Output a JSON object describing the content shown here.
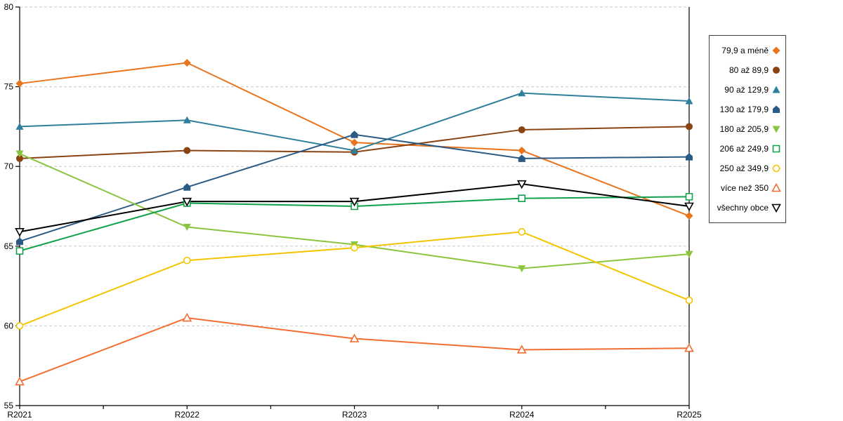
{
  "chart_data": {
    "type": "line",
    "title": "",
    "xlabel": "",
    "ylabel": "",
    "categories": [
      "R2021",
      "R2022",
      "R2023",
      "R2024",
      "R2025"
    ],
    "ylim": [
      55,
      80
    ],
    "ytick_step": 5,
    "ytick_labels": [
      "55",
      "60",
      "65",
      "70",
      "75",
      "80"
    ],
    "grid": "horizontal-dashed",
    "grid_color": "#c9c9c9",
    "axis_color": "#000000",
    "legend_position": "right",
    "series": [
      {
        "name": "79,9 a méně",
        "marker": "diamond",
        "fill": "filled",
        "color": "#e8741c",
        "values": [
          75.2,
          76.5,
          71.5,
          71.0,
          66.9
        ]
      },
      {
        "name": "80 až 89,9",
        "marker": "circle",
        "fill": "filled",
        "color": "#8a4412",
        "values": [
          70.5,
          71.0,
          70.9,
          72.3,
          72.5
        ]
      },
      {
        "name": "90 až 129,9",
        "marker": "triangle-up",
        "fill": "filled",
        "color": "#2e7e9c",
        "values": [
          72.5,
          72.9,
          71.0,
          74.6,
          74.1
        ]
      },
      {
        "name": "130 až 179,9",
        "marker": "pentagon",
        "fill": "filled",
        "color": "#2b5a84",
        "values": [
          65.3,
          68.7,
          72.0,
          70.5,
          70.6
        ]
      },
      {
        "name": "180 až 205,9",
        "marker": "triangle-down",
        "fill": "filled",
        "color": "#8bc53f",
        "values": [
          70.8,
          66.2,
          65.1,
          63.6,
          64.5
        ]
      },
      {
        "name": "206 až 249,9",
        "marker": "square",
        "fill": "open",
        "color": "#12a14b",
        "values": [
          64.7,
          67.7,
          67.5,
          68.0,
          68.1
        ]
      },
      {
        "name": "250 až 349,9",
        "marker": "circle",
        "fill": "open",
        "color": "#f2c500",
        "values": [
          60.0,
          64.1,
          64.9,
          65.9,
          61.6
        ]
      },
      {
        "name": "více než 350",
        "marker": "triangle-up",
        "fill": "open",
        "color": "#f26e31",
        "values": [
          56.5,
          60.5,
          59.2,
          58.5,
          58.6
        ]
      },
      {
        "name": "všechny obce",
        "marker": "triangle-down",
        "fill": "open",
        "color": "#000000",
        "values": [
          65.9,
          67.8,
          67.8,
          68.9,
          67.5
        ]
      }
    ]
  }
}
